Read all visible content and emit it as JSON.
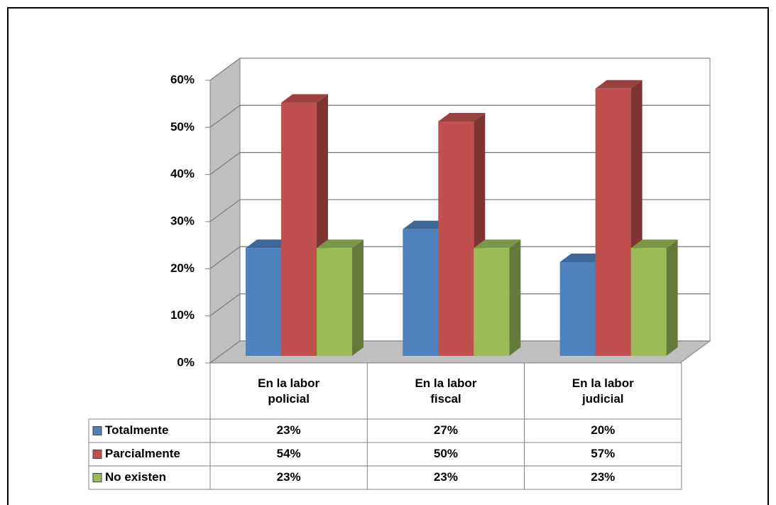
{
  "chart_data": {
    "type": "bar",
    "categories": [
      "En la labor policial",
      "En la labor fiscal",
      "En la labor judicial"
    ],
    "series": [
      {
        "name": "Totalmente",
        "color": "#4f81bd",
        "values": [
          23,
          27,
          20
        ],
        "value_labels": [
          "23%",
          "27%",
          "20%"
        ]
      },
      {
        "name": "Parcialmente",
        "color": "#c0504d",
        "values": [
          54,
          50,
          57
        ],
        "value_labels": [
          "54%",
          "50%",
          "57%"
        ]
      },
      {
        "name": "No existen",
        "color": "#9bbb59",
        "values": [
          23,
          23,
          23
        ],
        "value_labels": [
          "23%",
          "23%",
          "23%"
        ]
      }
    ],
    "ylim": [
      0,
      60
    ],
    "yticks": [
      {
        "value": 0,
        "label": "0%"
      },
      {
        "value": 10,
        "label": "10%"
      },
      {
        "value": 20,
        "label": "20%"
      },
      {
        "value": 30,
        "label": "30%"
      },
      {
        "value": 40,
        "label": "40%"
      },
      {
        "value": 50,
        "label": "50%"
      },
      {
        "value": 60,
        "label": "60%"
      }
    ],
    "grid": true
  }
}
